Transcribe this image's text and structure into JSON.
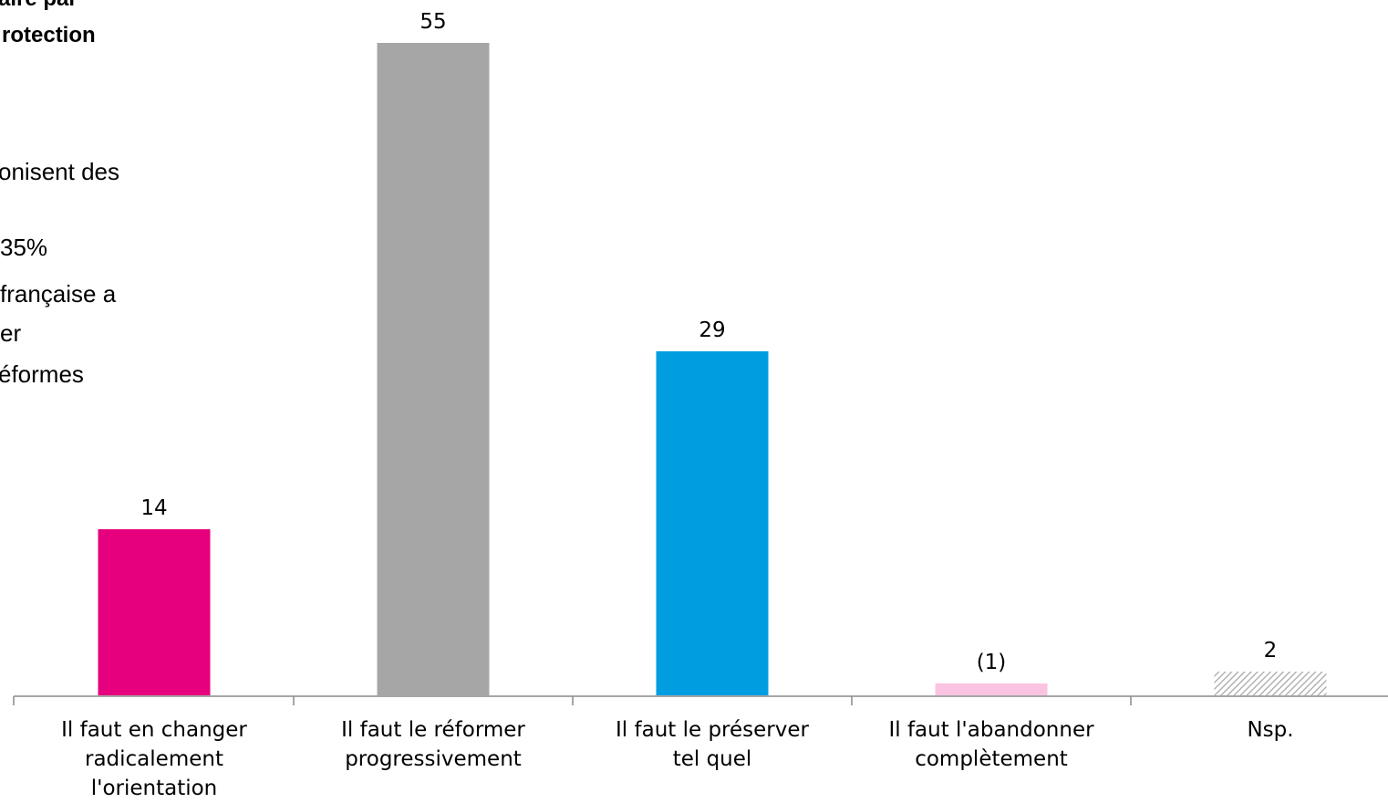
{
  "annotations": [
    "aire par",
    "rotection",
    "onisent des",
    "35%",
    "française a",
    "er",
    "éformes"
  ],
  "chart_data": {
    "type": "bar",
    "categories": [
      "Il faut en changer\nradicalement\nl'orientation",
      "Il faut le réformer\nprogressivement",
      "Il faut le préserver\ntel quel",
      "Il faut l'abandonner\ncomplètement",
      "Nsp."
    ],
    "values": [
      14,
      55,
      29,
      1,
      2
    ],
    "value_labels": [
      "14",
      "55",
      "29",
      "(1)",
      "2"
    ],
    "colors": [
      "#e6007e",
      "#a6a6a6",
      "#009ee0",
      "#f9c3e1",
      "#a6a6a6"
    ],
    "hatched": [
      false,
      false,
      false,
      false,
      true
    ],
    "ylim": [
      0,
      58
    ]
  }
}
